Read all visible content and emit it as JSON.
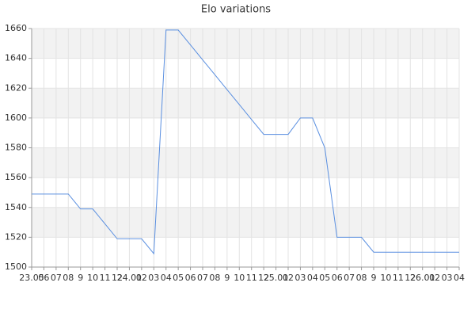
{
  "chart_data": {
    "type": "line",
    "title": "Elo variations",
    "categories": [
      "23.05",
      "06",
      "07",
      "08",
      "9",
      "10",
      "11",
      "12",
      "24.01",
      "02",
      "03",
      "04",
      "05",
      "06",
      "07",
      "08",
      "9",
      "10",
      "11",
      "12",
      "25.01",
      "02",
      "03",
      "04",
      "05",
      "06",
      "07",
      "08",
      "9",
      "10",
      "11",
      "12",
      "26.01",
      "02",
      "03",
      "04"
    ],
    "series": [
      {
        "name": "Elo",
        "color": "#5a8fe0",
        "values": [
          1549,
          1549,
          1549,
          1549,
          1539,
          1539,
          1529,
          1519,
          1519,
          1519,
          1509,
          1659,
          1659,
          1649,
          1639,
          1629,
          1619,
          1609,
          1599,
          1589,
          1589,
          1589,
          1600,
          1600,
          1580,
          1520,
          1520,
          1520,
          1510,
          1510,
          1510,
          1510,
          1510,
          1510,
          1510,
          1510
        ]
      }
    ],
    "ylim": [
      1500,
      1660
    ],
    "yticks": [
      1500,
      1520,
      1540,
      1560,
      1580,
      1600,
      1620,
      1640,
      1660
    ],
    "grid": true
  }
}
